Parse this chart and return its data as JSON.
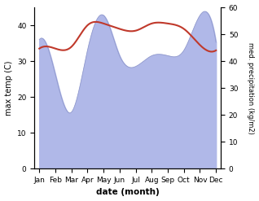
{
  "months": [
    "Jan",
    "Feb",
    "Mar",
    "Apr",
    "May",
    "Jun",
    "Jul",
    "Aug",
    "Sep",
    "Oct",
    "Nov",
    "Dec"
  ],
  "month_positions": [
    0,
    1,
    2,
    3,
    4,
    5,
    6,
    7,
    8,
    9,
    10,
    11
  ],
  "temperature": [
    33.5,
    33.5,
    34.0,
    40.0,
    40.5,
    39.0,
    38.5,
    40.5,
    40.5,
    39.0,
    34.5,
    33.0
  ],
  "precipitation": [
    48,
    35,
    21,
    44,
    57,
    42,
    38,
    42,
    42,
    44,
    57,
    47
  ],
  "temp_color": "#c0392b",
  "precip_fill_color": "#b0b8e8",
  "precip_line_color": "#9099cc",
  "xlabel": "date (month)",
  "ylabel_left": "max temp (C)",
  "ylabel_right": "med. precipitation (kg/m2)",
  "ylim_left": [
    0,
    45
  ],
  "ylim_right": [
    0,
    60
  ],
  "yticks_left": [
    0,
    10,
    20,
    30,
    40
  ],
  "yticks_right": [
    0,
    10,
    20,
    30,
    40,
    50,
    60
  ],
  "bg_color": "#ffffff",
  "fig_width": 3.18,
  "fig_height": 2.47,
  "dpi": 100
}
